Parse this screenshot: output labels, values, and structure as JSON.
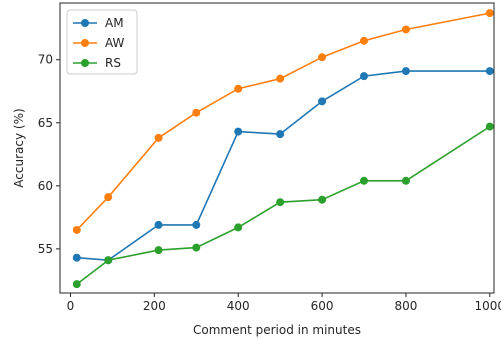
{
  "chart_data": {
    "type": "line",
    "title": "",
    "xlabel": "Comment period in minutes",
    "ylabel": "Accuracy (%)",
    "xlim": [
      -25,
      1010
    ],
    "ylim": [
      51.5,
      74.5
    ],
    "x_ticks": [
      0,
      200,
      400,
      600,
      800,
      1000
    ],
    "y_ticks": [
      55,
      60,
      65,
      70
    ],
    "grid": false,
    "legend_position": "top-left",
    "x": [
      15,
      90,
      210,
      300,
      400,
      500,
      600,
      700,
      800,
      1000
    ],
    "series": [
      {
        "name": "AM",
        "color": "#1f77b4",
        "values": [
          54.3,
          54.1,
          56.9,
          56.9,
          64.3,
          64.1,
          66.7,
          68.7,
          69.1,
          69.1
        ]
      },
      {
        "name": "AW",
        "color": "#ff7f0e",
        "values": [
          56.5,
          59.1,
          63.8,
          65.8,
          67.7,
          68.5,
          70.2,
          71.5,
          72.4,
          73.7
        ]
      },
      {
        "name": "RS",
        "color": "#2ca02c",
        "values": [
          52.2,
          54.1,
          54.9,
          55.1,
          56.7,
          58.7,
          58.9,
          60.4,
          60.4,
          64.7
        ]
      }
    ]
  }
}
